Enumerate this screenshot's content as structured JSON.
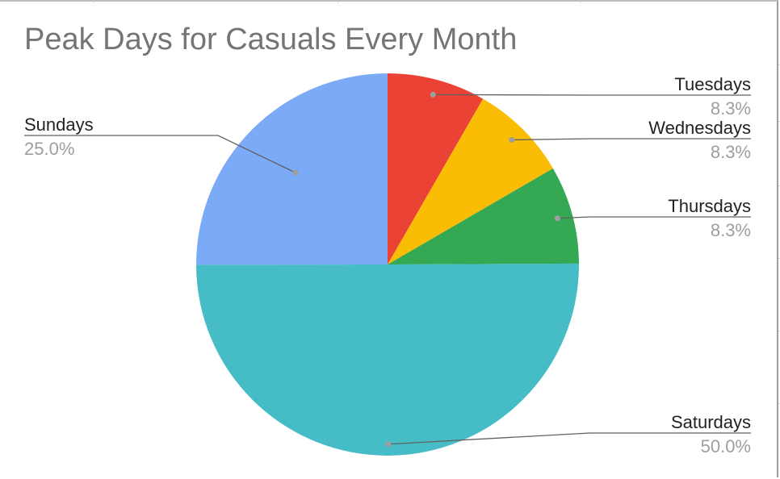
{
  "chart_data": {
    "type": "pie",
    "title": "Peak Days for Casuals Every Month",
    "slices": [
      {
        "label": "Tuesdays",
        "value": 8.3,
        "percent_label": "8.3%",
        "color": "#ea4335"
      },
      {
        "label": "Wednesdays",
        "value": 8.3,
        "percent_label": "8.3%",
        "color": "#fbbc04"
      },
      {
        "label": "Thursdays",
        "value": 8.3,
        "percent_label": "8.3%",
        "color": "#34a853"
      },
      {
        "label": "Saturdays",
        "value": 50.0,
        "percent_label": "50.0%",
        "color": "#46bdc6"
      },
      {
        "label": "Sundays",
        "value": 25.0,
        "percent_label": "25.0%",
        "color": "#7baaf7"
      }
    ],
    "legend": "none",
    "label_placement": "outside-with-leader-lines"
  }
}
